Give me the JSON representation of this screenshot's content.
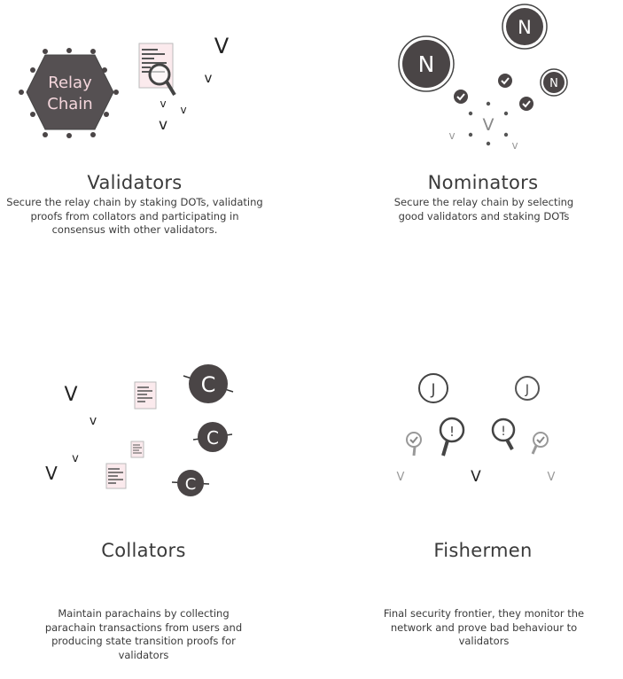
{
  "roles": {
    "validators": {
      "title": "Validators",
      "description": "Secure the relay chain by staking DOTs, validating proofs from collators and participating in consensus with other validators.",
      "hex_line1": "Relay",
      "hex_line2": "Chain"
    },
    "nominators": {
      "title": "Nominators",
      "description": "Secure the relay chain by selecting good validators and staking DOTs",
      "node_letter": "N"
    },
    "collators": {
      "title": "Collators",
      "description": "Maintain parachains by collecting parachain transactions from users and producing state transition proofs for validators",
      "node_letter": "C"
    },
    "fishermen": {
      "title": "Fishermen",
      "description": "Final security frontier, they monitor the network and prove bad behaviour to validators",
      "hook_letter": "J",
      "alert_mark": "!"
    }
  },
  "validator_letter": "V",
  "validator_letter_small": "v",
  "colors": {
    "dark": "#4a4546",
    "text": "#3a3a3a",
    "grey": "#8f8f8f",
    "doc_pink": "#fbeaed",
    "hex_text": "#f4d6dc"
  }
}
